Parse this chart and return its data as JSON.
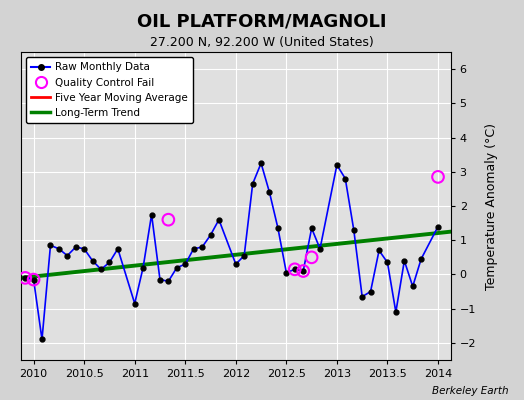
{
  "title": "OIL PLATFORM/MAGNOLI",
  "subtitle": "27.200 N, 92.200 W (United States)",
  "ylabel": "Temperature Anomaly (°C)",
  "attribution": "Berkeley Earth",
  "xlim": [
    2009.875,
    2014.125
  ],
  "ylim": [
    -2.5,
    6.5
  ],
  "yticks": [
    -2,
    -1,
    0,
    1,
    2,
    3,
    4,
    5,
    6
  ],
  "xticks": [
    2010,
    2010.5,
    2011,
    2011.5,
    2012,
    2012.5,
    2013,
    2013.5,
    2014
  ],
  "xtick_labels": [
    "2010",
    "2010.5",
    "2011",
    "2011.5",
    "2012",
    "2012.5",
    "2013",
    "2013.5",
    "2014"
  ],
  "background_color": "#d3d3d3",
  "plot_bg_color": "#e0e0e0",
  "raw_x": [
    2009.917,
    2010.0,
    2010.083,
    2010.167,
    2010.25,
    2010.333,
    2010.417,
    2010.5,
    2010.583,
    2010.667,
    2010.75,
    2010.833,
    2011.0,
    2011.083,
    2011.167,
    2011.25,
    2011.333,
    2011.417,
    2011.5,
    2011.583,
    2011.667,
    2011.75,
    2011.833,
    2012.0,
    2012.083,
    2012.167,
    2012.25,
    2012.333,
    2012.417,
    2012.5,
    2012.583,
    2012.667,
    2012.75,
    2012.833,
    2013.0,
    2013.083,
    2013.167,
    2013.25,
    2013.333,
    2013.417,
    2013.5,
    2013.583,
    2013.667,
    2013.75,
    2013.833,
    2014.0
  ],
  "raw_y": [
    -0.1,
    -0.15,
    -1.9,
    0.85,
    0.75,
    0.55,
    0.8,
    0.75,
    0.4,
    0.15,
    0.35,
    0.75,
    -0.85,
    0.2,
    1.75,
    -0.15,
    -0.2,
    0.2,
    0.3,
    0.75,
    0.8,
    1.15,
    1.6,
    0.3,
    0.55,
    2.65,
    3.25,
    2.4,
    1.35,
    0.05,
    0.15,
    0.1,
    1.35,
    0.75,
    3.2,
    2.8,
    1.3,
    -0.65,
    -0.5,
    0.7,
    0.35,
    -1.1,
    0.4,
    -0.35,
    0.45,
    1.4
  ],
  "qc_fail_x": [
    2009.917,
    2010.0,
    2011.333,
    2012.583,
    2012.667,
    2012.75,
    2014.0
  ],
  "qc_fail_y": [
    -0.1,
    -0.15,
    1.6,
    0.15,
    0.1,
    0.5,
    2.85
  ],
  "trend_x": [
    2009.875,
    2014.125
  ],
  "trend_y": [
    -0.1,
    1.25
  ],
  "title_fontsize": 13,
  "subtitle_fontsize": 9,
  "tick_fontsize": 8,
  "ylabel_fontsize": 9,
  "legend_fontsize": 7.5,
  "attribution_fontsize": 7.5
}
